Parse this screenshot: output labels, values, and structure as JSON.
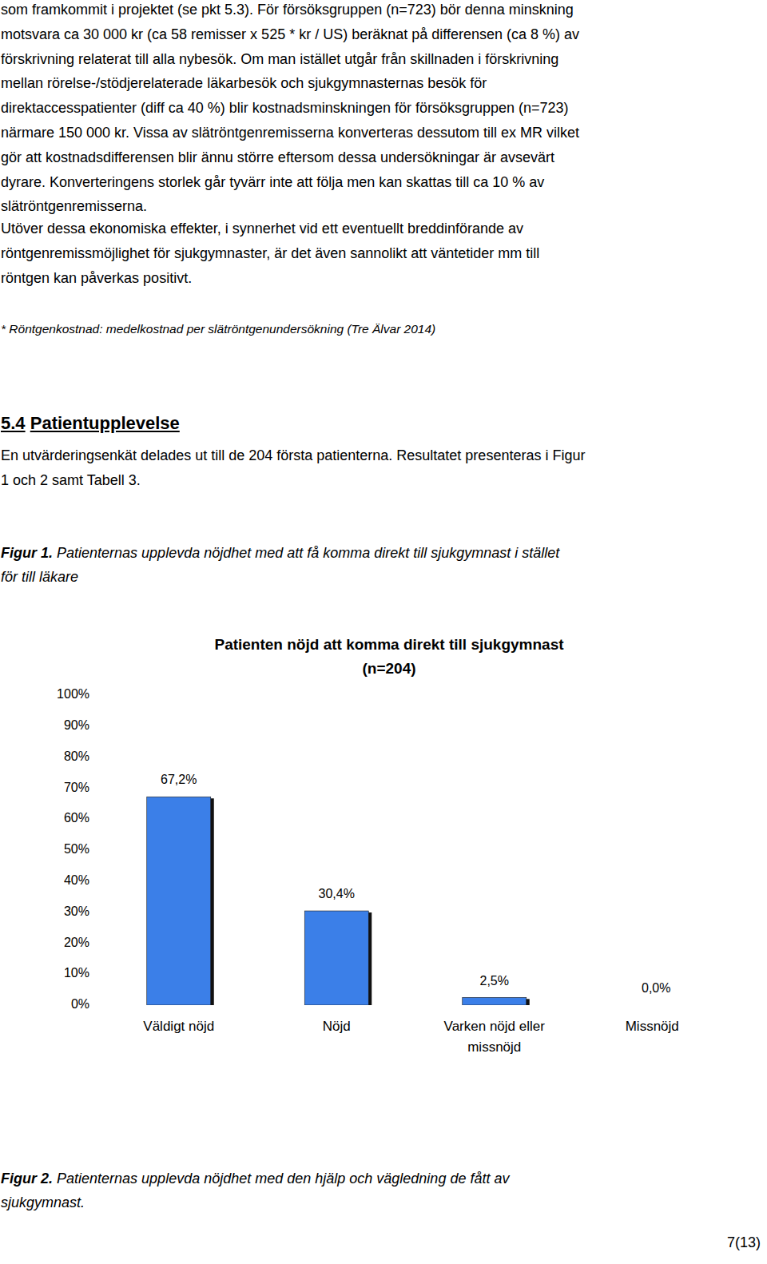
{
  "document": {
    "body_paragraphs": [
      {
        "lines": [
          "som framkommit i projektet (se pkt 5.3). För försöksgruppen (n=723) bör denna minskning",
          "motsvara ca 30 000 kr (ca 58 remisser x 525 * kr / US) beräknat på differensen (ca 8 %) av",
          "förskrivning relaterat till alla nybesök. Om man istället utgår från skillnaden i förskrivning",
          "mellan rörelse-/stödjerelaterade läkarbesök och sjukgymnasternas besök för",
          "direktaccesspatienter (diff ca 40 %) blir kostnadsminskningen för försöksgruppen (n=723)",
          "närmare 150 000 kr. Vissa av slätröntgenremisserna konverteras dessutom till ex MR vilket",
          "gör att kostnadsdifferensen blir ännu större eftersom dessa undersökningar är avsevärt",
          "dyrare. Konverteringens storlek går tyvärr inte att följa men kan skattas till ca 10 % av",
          "slätröntgenremisserna."
        ]
      },
      {
        "lines": [
          "Utöver dessa ekonomiska effekter, i synnerhet vid ett eventuellt breddinförande av",
          "röntgenremissmöjlighet för sjukgymnaster, är det även sannolikt att väntetider mm till",
          "röntgen kan påverkas positivt."
        ]
      }
    ],
    "footnote": "* Röntgenkostnad: medelkostnad per slätröntgenundersökning (Tre Älvar 2014)",
    "section": {
      "number": "5.4",
      "title": "Patientupplevelse"
    },
    "intro_lines": [
      "En utvärderingsenkät delades ut till de 204 första patienterna. Resultatet presenteras i Figur",
      "1 och 2 samt Tabell 3."
    ],
    "figure_1_caption": {
      "label": "Figur 1.",
      "text_lines": [
        "Patienternas upplevda nöjdhet med att få komma direkt till sjukgymnast i stället",
        "för till läkare"
      ]
    },
    "figure_2_caption": {
      "label": "Figur 2.",
      "text_lines": [
        "Patienternas upplevda nöjdhet med den hjälp och vägledning de fått av",
        "sjukgymnast."
      ]
    },
    "page_number": "7(13)"
  },
  "chart_data": {
    "type": "bar",
    "title": "Patienten nöjd att komma direkt till sjukgymnast",
    "subtitle": "(n=204)",
    "categories": [
      "Väldigt nöjd",
      "Nöjd",
      "Varken nöjd eller missnöjd",
      "Missnöjd"
    ],
    "values": [
      67.2,
      30.4,
      2.5,
      0.0
    ],
    "value_labels": [
      "67,2%",
      "30,4%",
      "2,5%",
      "0,0%"
    ],
    "color": "#3b7fe8",
    "ylim": [
      0,
      100
    ],
    "yticks": [
      {
        "value": 0,
        "label": "0%"
      },
      {
        "value": 10,
        "label": "10%"
      },
      {
        "value": 20,
        "label": "20%"
      },
      {
        "value": 30,
        "label": "30%"
      },
      {
        "value": 40,
        "label": "40%"
      },
      {
        "value": 50,
        "label": "50%"
      },
      {
        "value": 60,
        "label": "60%"
      },
      {
        "value": 70,
        "label": "70%"
      },
      {
        "value": 80,
        "label": "80%"
      },
      {
        "value": 90,
        "label": "90%"
      },
      {
        "value": 100,
        "label": "100%"
      }
    ],
    "grid": false,
    "data_labels": true
  }
}
